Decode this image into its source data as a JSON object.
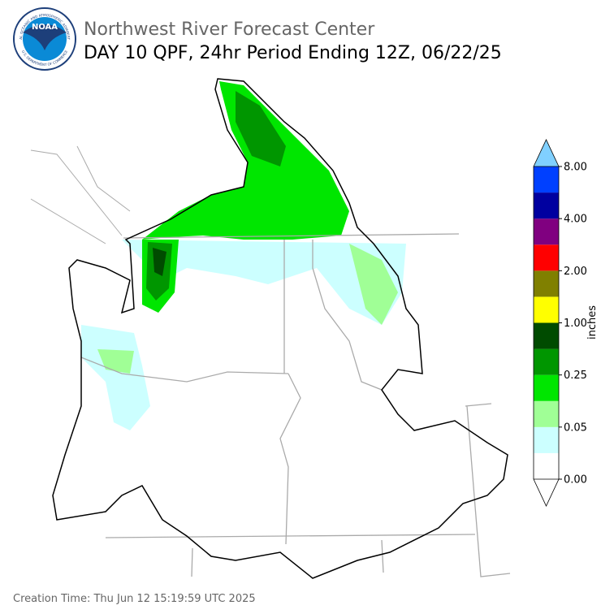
{
  "header": {
    "title": "Northwest River Forecast Center",
    "subtitle": "DAY 10 QPF, 24hr Period Ending 12Z, 06/22/25"
  },
  "logo": {
    "text": "NOAA",
    "ring_top": "NATIONAL OCEANIC AND ATMOSPHERIC ADMINISTRATION",
    "ring_bottom": "U.S. DEPARTMENT OF COMMERCE"
  },
  "colorbar": {
    "label": "inches",
    "under_color": "#ffffff",
    "over_color": "#80d0ff",
    "colors": [
      "#ffffff",
      "#ccffff",
      "#a0ff96",
      "#00e600",
      "#009600",
      "#004b00",
      "#ffff00",
      "#808000",
      "#ff0000",
      "#800080",
      "#0000a0",
      "#0040ff"
    ],
    "ticks": [
      {
        "value": 0,
        "label": "0.00"
      },
      {
        "value": 0.05,
        "label": "0.05"
      },
      {
        "value": 0.25,
        "label": "0.25"
      },
      {
        "value": 1,
        "label": "1.00"
      },
      {
        "value": 2,
        "label": "2.00"
      },
      {
        "value": 4,
        "label": "4.00"
      },
      {
        "value": 8,
        "label": "8.00"
      }
    ]
  },
  "footer": {
    "creation_time": "Creation Time: Thu Jun 12 15:19:59 UTC 2025"
  }
}
